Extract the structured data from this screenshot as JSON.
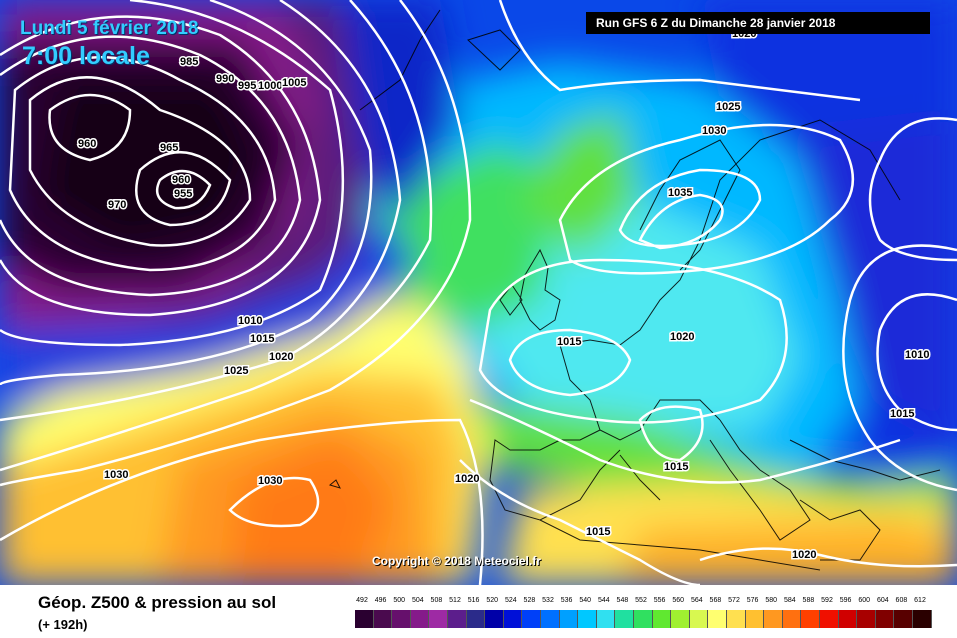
{
  "header": {
    "date_line": "Lundi 5 février 2018",
    "time_line": "7:00 locale",
    "run_label": "Run GFS 6 Z du Dimanche 28 janvier 2018"
  },
  "copyright": "Copyright © 2018 Meteociel.fr",
  "legend": {
    "title": "Géop. Z500 & pression au sol",
    "subtitle": "(+ 192h)",
    "scale": [
      {
        "v": "492",
        "c": "#2a0030"
      },
      {
        "v": "496",
        "c": "#4a0a4e"
      },
      {
        "v": "500",
        "c": "#66106c"
      },
      {
        "v": "504",
        "c": "#851a8a"
      },
      {
        "v": "508",
        "c": "#9e2aa4"
      },
      {
        "v": "512",
        "c": "#5c1e8c"
      },
      {
        "v": "516",
        "c": "#2b2b8a"
      },
      {
        "v": "520",
        "c": "#0000a8"
      },
      {
        "v": "524",
        "c": "#0010d8"
      },
      {
        "v": "528",
        "c": "#0040f8"
      },
      {
        "v": "532",
        "c": "#0070ff"
      },
      {
        "v": "536",
        "c": "#00a0ff"
      },
      {
        "v": "540",
        "c": "#00c8ff"
      },
      {
        "v": "544",
        "c": "#30e0f0"
      },
      {
        "v": "548",
        "c": "#20e0a0"
      },
      {
        "v": "552",
        "c": "#30e060"
      },
      {
        "v": "556",
        "c": "#60e830"
      },
      {
        "v": "560",
        "c": "#a0f030"
      },
      {
        "v": "564",
        "c": "#d8f850"
      },
      {
        "v": "568",
        "c": "#ffff70"
      },
      {
        "v": "572",
        "c": "#ffe050"
      },
      {
        "v": "576",
        "c": "#ffc030"
      },
      {
        "v": "580",
        "c": "#ff9820"
      },
      {
        "v": "584",
        "c": "#ff7010"
      },
      {
        "v": "588",
        "c": "#ff4000"
      },
      {
        "v": "592",
        "c": "#f01000"
      },
      {
        "v": "596",
        "c": "#d00000"
      },
      {
        "v": "600",
        "c": "#a80000"
      },
      {
        "v": "604",
        "c": "#800000"
      },
      {
        "v": "608",
        "c": "#580000"
      },
      {
        "v": "612",
        "c": "#2a0000"
      }
    ]
  },
  "isobar_labels": [
    {
      "text": "960"
    },
    {
      "text": "965"
    },
    {
      "text": "960"
    },
    {
      "text": "955"
    },
    {
      "text": "970"
    },
    {
      "text": "985"
    },
    {
      "text": "990"
    },
    {
      "text": "995"
    },
    {
      "text": "1000"
    },
    {
      "text": "1005"
    },
    {
      "text": "1010"
    },
    {
      "text": "1015"
    },
    {
      "text": "1020"
    },
    {
      "text": "1025"
    },
    {
      "text": "1030"
    },
    {
      "text": "1030"
    },
    {
      "text": "1020"
    },
    {
      "text": "1015"
    },
    {
      "text": "1020"
    },
    {
      "text": "1025"
    },
    {
      "text": "1030"
    },
    {
      "text": "1035"
    },
    {
      "text": "1015"
    },
    {
      "text": "1015"
    },
    {
      "text": "1010"
    },
    {
      "text": "1015"
    },
    {
      "text": "1020"
    },
    {
      "text": "1020"
    }
  ]
}
